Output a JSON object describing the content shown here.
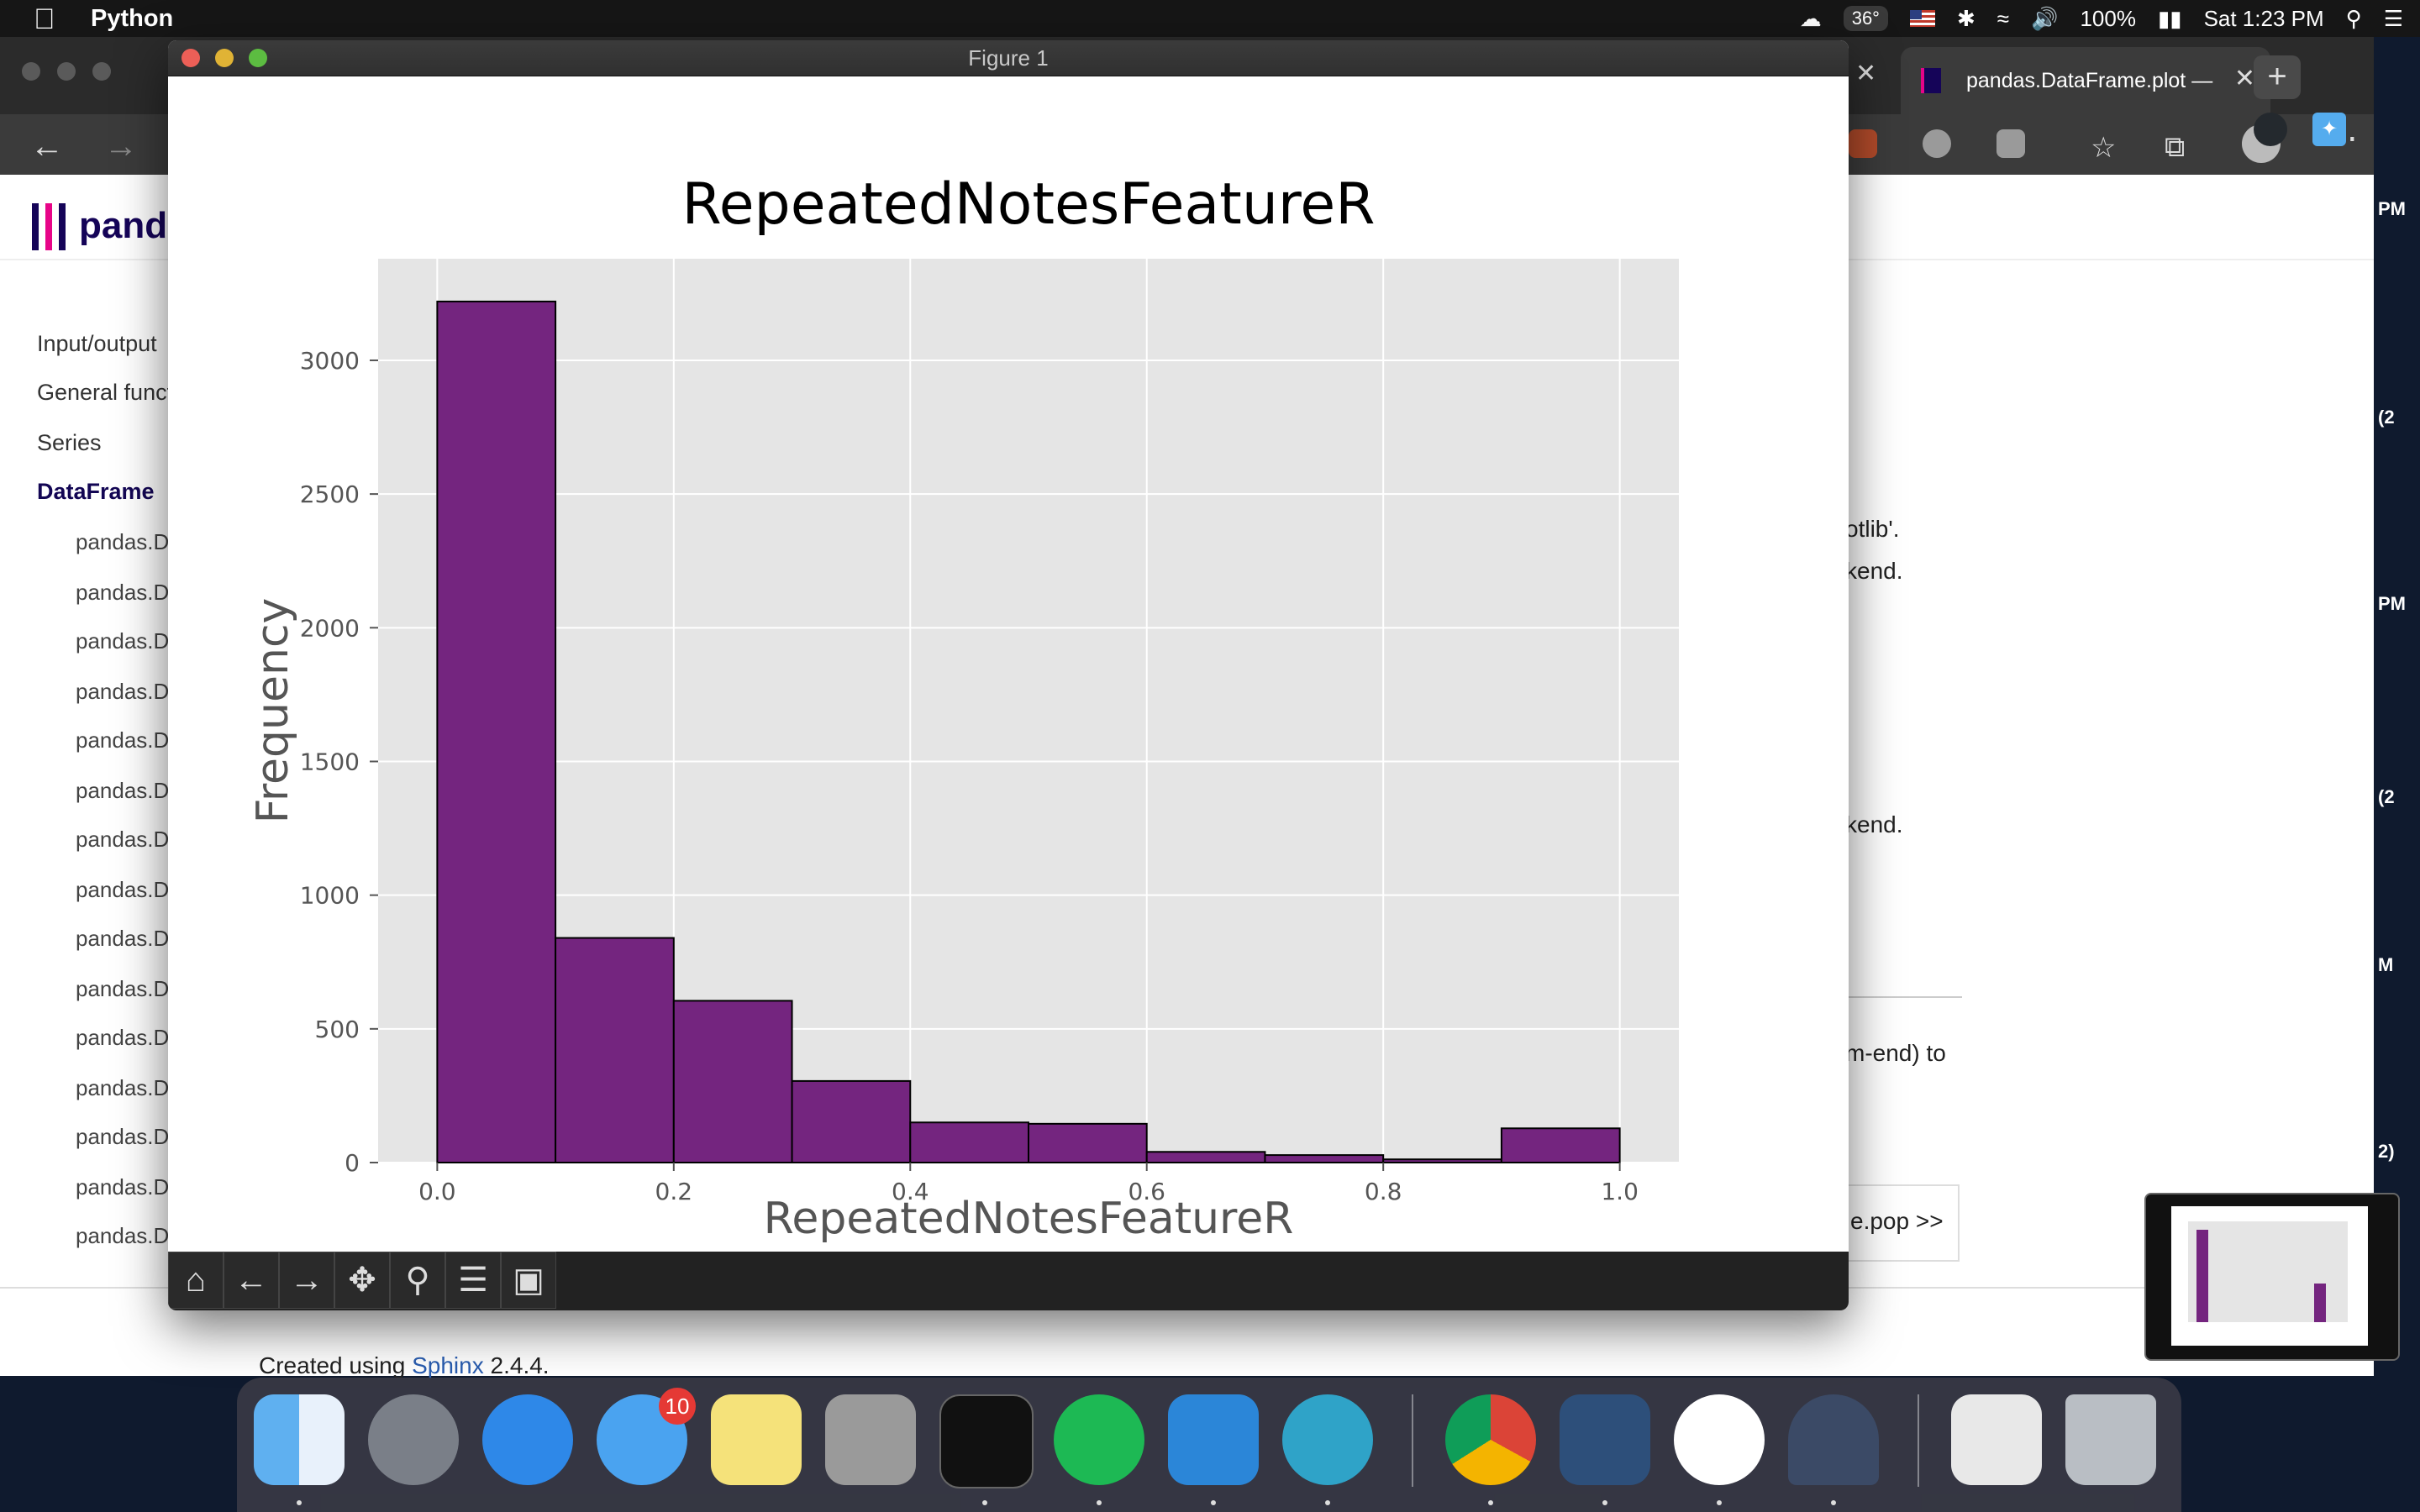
{
  "menubar": {
    "app_name": "Python",
    "temperature": "36°",
    "battery": "100%",
    "clock": "Sat 1:23 PM"
  },
  "browser": {
    "active_tab_title": "pandas.DataFrame.plot —",
    "logo_text": "pand",
    "sidebar": {
      "items": [
        {
          "label": "Input/output"
        },
        {
          "label": "General funct"
        },
        {
          "label": "Series"
        },
        {
          "label": "DataFrame"
        }
      ],
      "subitems": [
        "pandas.D",
        "pandas.D",
        "pandas.D",
        "pandas.D",
        "pandas.D",
        "pandas.D",
        "pandas.D",
        "pandas.D",
        "pandas.D",
        "pandas.D",
        "pandas.D",
        "pandas.D",
        "pandas.D",
        "pandas.D",
        "pandas.D"
      ]
    },
    "content_fragments": {
      "frag1": "otlib'.",
      "frag2": "kend",
      "frag2_end": ".",
      "frag3": "kend.",
      "frag4": "m-end) to",
      "next_link": "e.pop >>"
    },
    "footer": {
      "prefix": "Created using ",
      "link": "Sphinx",
      "suffix": " 2.4.4."
    }
  },
  "figure": {
    "window_title": "Figure 1",
    "toolbar_buttons": [
      {
        "name": "home-icon",
        "glyph": "⌂"
      },
      {
        "name": "back-icon",
        "glyph": "←"
      },
      {
        "name": "forward-icon",
        "glyph": "→"
      },
      {
        "name": "pan-icon",
        "glyph": "✥"
      },
      {
        "name": "zoom-icon",
        "glyph": "⚲"
      },
      {
        "name": "subplots-icon",
        "glyph": "☰"
      },
      {
        "name": "save-icon",
        "glyph": "▣"
      }
    ]
  },
  "dock": {
    "messages_badge": "10"
  },
  "chart_data": {
    "type": "bar",
    "title": "RepeatedNotesFeatureR",
    "xlabel": "RepeatedNotesFeatureR",
    "ylabel": "Frequency",
    "bin_edges": [
      0.0,
      0.1,
      0.2,
      0.3,
      0.4,
      0.5,
      0.6,
      0.7,
      0.8,
      0.9,
      1.0
    ],
    "values": [
      3220,
      840,
      605,
      305,
      150,
      145,
      40,
      28,
      12,
      128
    ],
    "xlim": [
      -0.05,
      1.05
    ],
    "ylim": [
      0,
      3380
    ],
    "xticks": [
      0.0,
      0.2,
      0.4,
      0.6,
      0.8,
      1.0
    ],
    "xtick_labels": [
      "0.0",
      "0.2",
      "0.4",
      "0.6",
      "0.8",
      "1.0"
    ],
    "yticks": [
      0,
      500,
      1000,
      1500,
      2000,
      2500,
      3000
    ],
    "ytick_labels": [
      "0",
      "500",
      "1000",
      "1500",
      "2000",
      "2500",
      "3000"
    ],
    "grid": true,
    "bar_color": "#74257f",
    "background_color": "#e5e5e5"
  }
}
